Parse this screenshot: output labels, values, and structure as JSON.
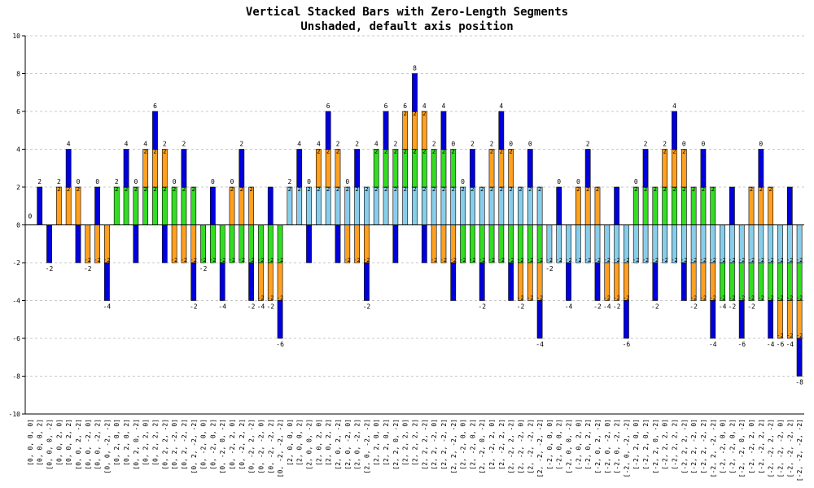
{
  "chart_data": {
    "type": "bar",
    "stacked": true,
    "title": "Vertical Stacked Bars with Zero-Length Segments",
    "subtitle": "Unshaded, default axis position",
    "ylim": [
      -10,
      10
    ],
    "yticks": [
      -10,
      -8,
      -6,
      -4,
      -2,
      0,
      2,
      4,
      6,
      8,
      10
    ],
    "grid": true,
    "categories": [
      "[0, 0, 0, 0]",
      "[0, 0, 0, 2]",
      "[0, 0, 0, -2]",
      "[0, 0, 2, 0]",
      "[0, 0, 2, 2]",
      "[0, 0, 2, -2]",
      "[0, 0, -2, 0]",
      "[0, 0, -2, 2]",
      "[0, 0, -2, -2]",
      "[0, 2, 0, 0]",
      "[0, 2, 0, 2]",
      "[0, 2, 0, -2]",
      "[0, 2, 2, 0]",
      "[0, 2, 2, 2]",
      "[0, 2, 2, -2]",
      "[0, 2, -2, 0]",
      "[0, 2, -2, 2]",
      "[0, 2, -2, -2]",
      "[0, -2, 0, 0]",
      "[0, -2, 0, 2]",
      "[0, -2, 0, -2]",
      "[0, -2, 2, 0]",
      "[0, -2, 2, 2]",
      "[0, -2, 2, -2]",
      "[0, -2, -2, 0]",
      "[0, -2, -2, 2]",
      "[0, -2, -2, -2]",
      "[2, 0, 0, 0]",
      "[2, 0, 0, 2]",
      "[2, 0, 0, -2]",
      "[2, 0, 2, 0]",
      "[2, 0, 2, 2]",
      "[2, 0, 2, -2]",
      "[2, 0, -2, 0]",
      "[2, 0, -2, 2]",
      "[2, 0, -2, -2]",
      "[2, 2, 0, 0]",
      "[2, 2, 0, 2]",
      "[2, 2, 0, -2]",
      "[2, 2, 2, 0]",
      "[2, 2, 2, 2]",
      "[2, 2, 2, -2]",
      "[2, 2, -2, 0]",
      "[2, 2, -2, 2]",
      "[2, 2, -2, -2]",
      "[2, -2, 0, 0]",
      "[2, -2, 0, 2]",
      "[2, -2, 0, -2]",
      "[2, -2, 2, 0]",
      "[2, -2, 2, 2]",
      "[2, -2, 2, -2]",
      "[2, -2, -2, 0]",
      "[2, -2, -2, 2]",
      "[2, -2, -2, -2]",
      "[-2, 0, 0, 0]",
      "[-2, 0, 0, 2]",
      "[-2, 0, 0, -2]",
      "[-2, 0, 2, 0]",
      "[-2, 0, 2, 2]",
      "[-2, 0, 2, -2]",
      "[-2, 0, -2, 0]",
      "[-2, 0, -2, 2]",
      "[-2, 0, -2, -2]",
      "[-2, 2, 0, 0]",
      "[-2, 2, 0, 2]",
      "[-2, 2, 0, -2]",
      "[-2, 2, 2, 0]",
      "[-2, 2, 2, 2]",
      "[-2, 2, 2, -2]",
      "[-2, 2, -2, 0]",
      "[-2, 2, -2, 2]",
      "[-2, 2, -2, -2]",
      "[-2, -2, 0, 0]",
      "[-2, -2, 0, 2]",
      "[-2, -2, 0, -2]",
      "[-2, -2, 2, 0]",
      "[-2, -2, 2, 2]",
      "[-2, -2, 2, -2]",
      "[-2, -2, -2, 0]",
      "[-2, -2, -2, 2]",
      "[-2, -2, -2, -2]"
    ],
    "series_colors": [
      "#87ceeb",
      "#33dd22",
      "#ffa020",
      "#0000dd"
    ],
    "stack_rule": "positive values stack upward from 0, negative values stack downward from 0, series in order"
  }
}
